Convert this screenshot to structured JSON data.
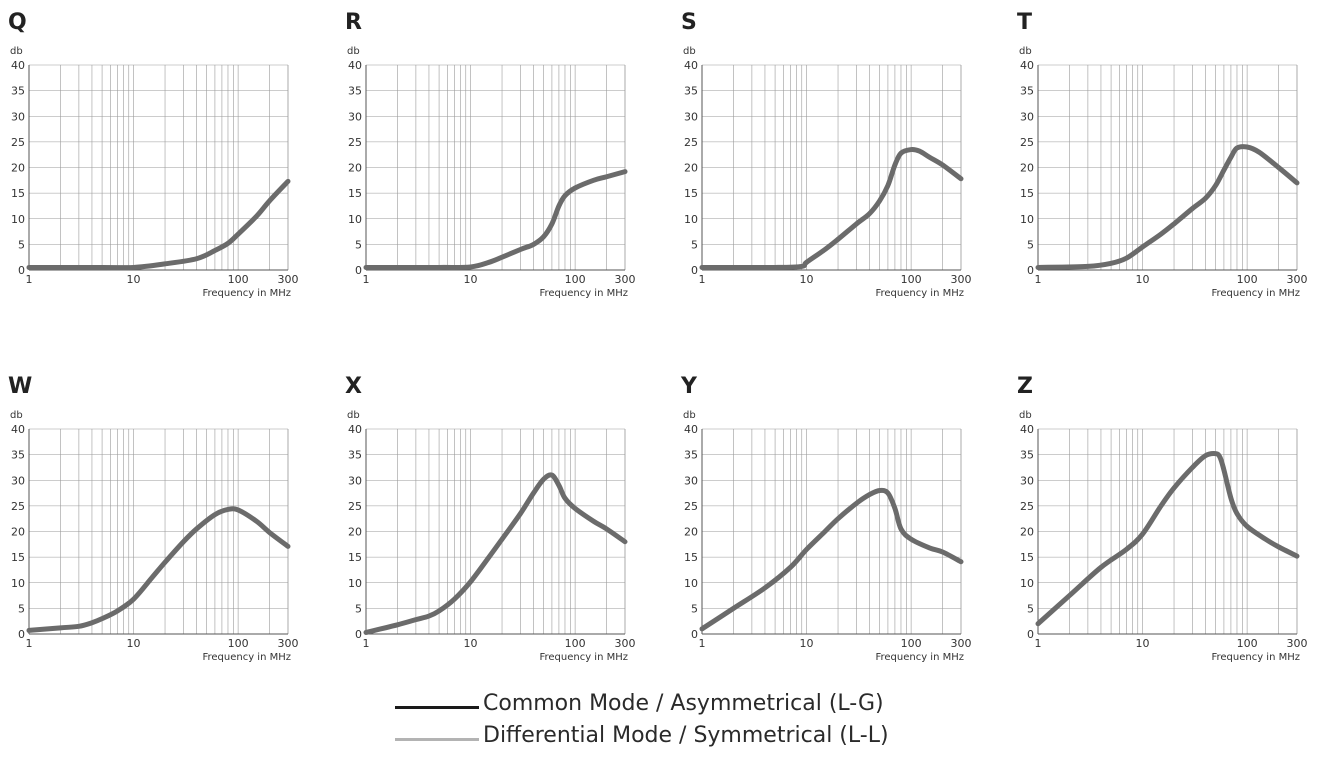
{
  "chart_data": [
    {
      "type": "line",
      "title": "Q",
      "ylabel": "db",
      "xlabel": "Frequency in MHz",
      "xscale": "log",
      "xlim": [
        1,
        300
      ],
      "ylim": [
        0,
        40
      ],
      "yticks": [
        "0",
        "5",
        "10",
        "15",
        "20",
        "25",
        "30",
        "35",
        "40"
      ],
      "xticks": [
        "1",
        "10",
        "100",
        "300"
      ],
      "series": [
        {
          "color": "#6b6b6b",
          "x": [
            1,
            5,
            10,
            20,
            40,
            60,
            80,
            100,
            150,
            200,
            300
          ],
          "y": [
            0.5,
            0.5,
            0.5,
            1.2,
            2.2,
            3.8,
            5.2,
            7,
            10.5,
            13.5,
            17.3
          ]
        }
      ]
    },
    {
      "type": "line",
      "title": "R",
      "ylabel": "db",
      "xlabel": "Frequency in MHz",
      "xscale": "log",
      "xlim": [
        1,
        300
      ],
      "ylim": [
        0,
        40
      ],
      "yticks": [
        "0",
        "5",
        "10",
        "15",
        "20",
        "25",
        "30",
        "35",
        "40"
      ],
      "xticks": [
        "1",
        "10",
        "100",
        "300"
      ],
      "series": [
        {
          "color": "#6b6b6b",
          "x": [
            1,
            5,
            10,
            15,
            20,
            30,
            40,
            50,
            60,
            70,
            80,
            100,
            150,
            200,
            300
          ],
          "y": [
            0.5,
            0.5,
            0.6,
            1.5,
            2.5,
            4,
            5,
            6.5,
            9,
            12.5,
            14.5,
            16,
            17.5,
            18.2,
            19.2
          ]
        }
      ]
    },
    {
      "type": "line",
      "title": "S",
      "ylabel": "db",
      "xlabel": "Frequency in MHz",
      "xscale": "log",
      "xlim": [
        1,
        300
      ],
      "ylim": [
        0,
        40
      ],
      "yticks": [
        "0",
        "5",
        "10",
        "15",
        "20",
        "25",
        "30",
        "35",
        "40"
      ],
      "xticks": [
        "1",
        "10",
        "100",
        "300"
      ],
      "series": [
        {
          "color": "#6b6b6b",
          "x": [
            1,
            5,
            9,
            10,
            15,
            20,
            30,
            40,
            50,
            60,
            70,
            80,
            100,
            120,
            150,
            200,
            300
          ],
          "y": [
            0.5,
            0.5,
            0.7,
            1.5,
            4,
            6,
            9,
            11,
            13.5,
            16.5,
            20.5,
            22.8,
            23.5,
            23.2,
            22,
            20.5,
            17.8
          ]
        }
      ]
    },
    {
      "type": "line",
      "title": "T",
      "ylabel": "db",
      "xlabel": "Frequency in MHz",
      "xscale": "log",
      "xlim": [
        1,
        300
      ],
      "ylim": [
        0,
        40
      ],
      "yticks": [
        "0",
        "5",
        "10",
        "15",
        "20",
        "25",
        "30",
        "35",
        "40"
      ],
      "xticks": [
        "1",
        "10",
        "100",
        "300"
      ],
      "series": [
        {
          "color": "#6b6b6b",
          "x": [
            1,
            3,
            5,
            7,
            10,
            15,
            20,
            30,
            40,
            50,
            60,
            70,
            80,
            100,
            130,
            200,
            300
          ],
          "y": [
            0.5,
            0.7,
            1.3,
            2.3,
            4.5,
            7,
            9,
            12,
            14,
            16.5,
            19.5,
            22,
            23.8,
            24,
            23,
            20,
            17
          ]
        }
      ]
    },
    {
      "type": "line",
      "title": "W",
      "ylabel": "db",
      "xlabel": "Frequency in MHz",
      "xscale": "log",
      "xlim": [
        1,
        300
      ],
      "ylim": [
        0,
        40
      ],
      "yticks": [
        "0",
        "5",
        "10",
        "15",
        "20",
        "25",
        "30",
        "35",
        "40"
      ],
      "xticks": [
        "1",
        "10",
        "100",
        "300"
      ],
      "series": [
        {
          "color": "#6b6b6b",
          "x": [
            1,
            2,
            3,
            4,
            5,
            7,
            10,
            15,
            20,
            30,
            40,
            60,
            80,
            100,
            150,
            200,
            300
          ],
          "y": [
            0.7,
            1.2,
            1.5,
            2.2,
            3,
            4.5,
            6.8,
            11,
            14,
            18,
            20.5,
            23.3,
            24.3,
            24.2,
            22,
            19.8,
            17.1
          ]
        }
      ]
    },
    {
      "type": "line",
      "title": "X",
      "ylabel": "db",
      "xlabel": "Frequency in MHz",
      "xscale": "log",
      "xlim": [
        1,
        300
      ],
      "ylim": [
        0,
        40
      ],
      "yticks": [
        "0",
        "5",
        "10",
        "15",
        "20",
        "25",
        "30",
        "35",
        "40"
      ],
      "xticks": [
        "1",
        "10",
        "100",
        "300"
      ],
      "series": [
        {
          "color": "#6b6b6b",
          "x": [
            1,
            2,
            3,
            4,
            5,
            7,
            10,
            15,
            20,
            30,
            40,
            50,
            60,
            70,
            80,
            100,
            150,
            200,
            300
          ],
          "y": [
            0.3,
            1.8,
            2.8,
            3.5,
            4.5,
            6.8,
            10.2,
            15,
            18.5,
            23.5,
            27.5,
            30.2,
            31,
            29,
            26.5,
            24.5,
            22,
            20.5,
            18
          ]
        }
      ]
    },
    {
      "type": "line",
      "title": "Y",
      "ylabel": "db",
      "xlabel": "Frequency in MHz",
      "xscale": "log",
      "xlim": [
        1,
        300
      ],
      "ylim": [
        0,
        40
      ],
      "yticks": [
        "0",
        "5",
        "10",
        "15",
        "20",
        "25",
        "30",
        "35",
        "40"
      ],
      "xticks": [
        "1",
        "10",
        "100",
        "300"
      ],
      "series": [
        {
          "color": "#6b6b6b",
          "x": [
            1,
            2,
            4,
            7,
            10,
            15,
            20,
            30,
            40,
            50,
            60,
            70,
            80,
            100,
            150,
            200,
            300
          ],
          "y": [
            1,
            5,
            9,
            13,
            16.5,
            20,
            22.5,
            25.5,
            27.2,
            28,
            27.5,
            24.5,
            20.5,
            18.5,
            16.8,
            16,
            14.1
          ]
        }
      ]
    },
    {
      "type": "line",
      "title": "Z",
      "ylabel": "db",
      "xlabel": "Frequency in MHz",
      "xscale": "log",
      "xlim": [
        1,
        300
      ],
      "ylim": [
        0,
        40
      ],
      "yticks": [
        "0",
        "5",
        "10",
        "15",
        "20",
        "25",
        "30",
        "35",
        "40"
      ],
      "xticks": [
        "1",
        "10",
        "100",
        "300"
      ],
      "series": [
        {
          "color": "#6b6b6b",
          "x": [
            1,
            2,
            4,
            7,
            10,
            15,
            20,
            30,
            40,
            50,
            55,
            60,
            70,
            80,
            100,
            150,
            200,
            300
          ],
          "y": [
            2,
            7.5,
            13,
            16.5,
            19.5,
            25,
            28.5,
            32.5,
            34.8,
            35.2,
            34.5,
            32,
            26.5,
            23.5,
            21,
            18.5,
            17,
            15.2
          ]
        }
      ]
    }
  ],
  "legend": {
    "common_label": "Common Mode / Asymmetrical (L-G)",
    "common_color": "#1a1a1a",
    "differential_label": "Differential Mode / Symmetrical (L-L)",
    "differential_color": "#b3b3b3"
  }
}
